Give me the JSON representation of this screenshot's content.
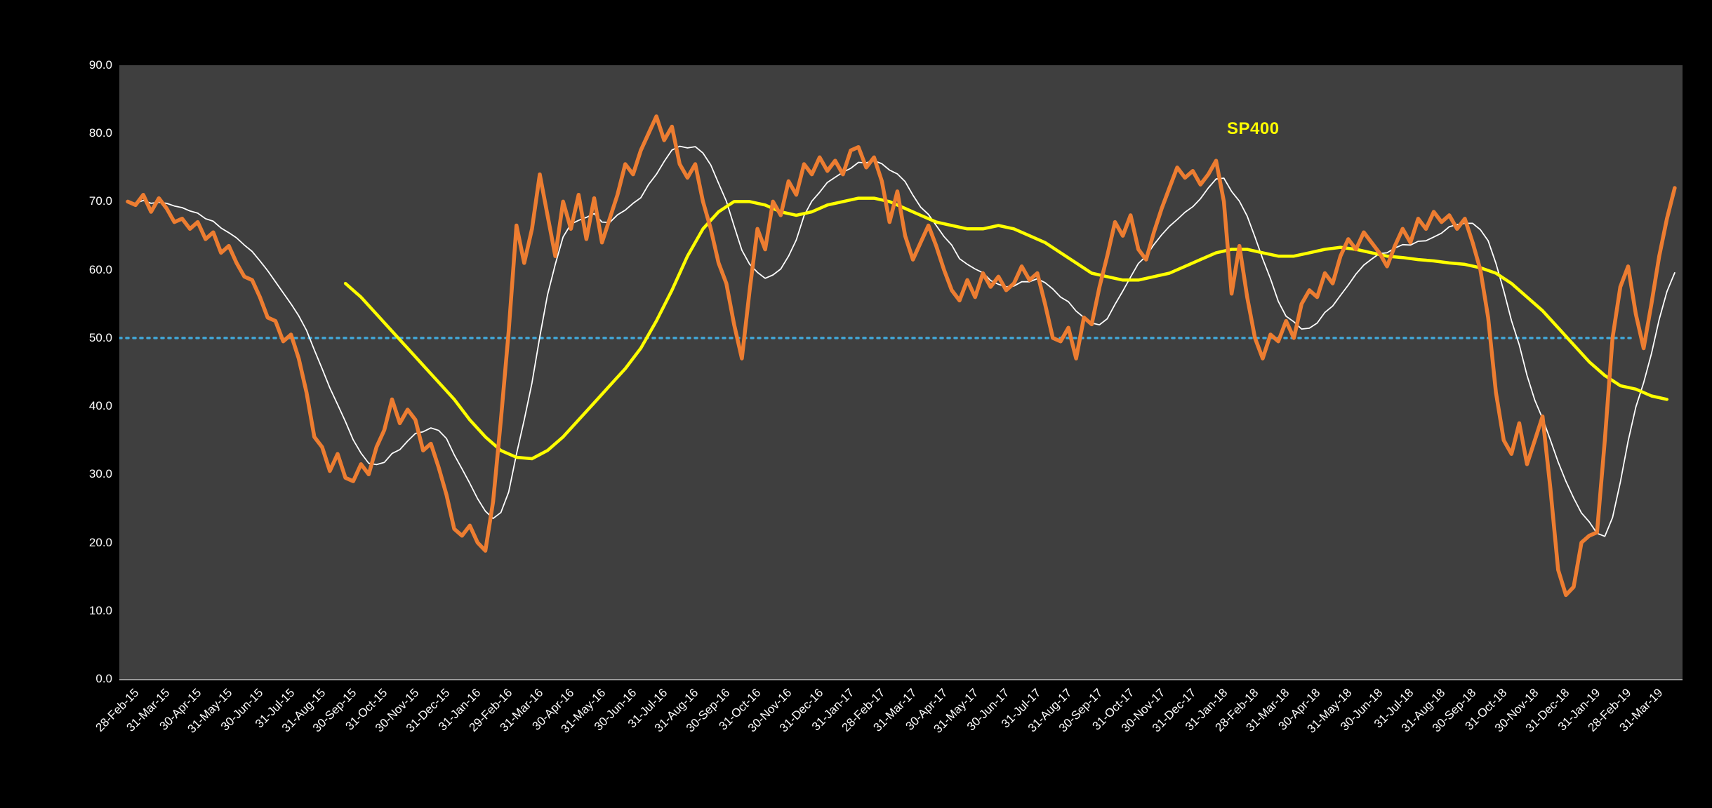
{
  "page": {
    "background": "#000000"
  },
  "chart_data": {
    "type": "line",
    "title": "",
    "legend": {
      "text": "SP400",
      "color": "#FFFF00"
    },
    "plot_bg": "#3F3F3F",
    "grid": "off",
    "legend_position": "inside-top-right",
    "ylim": [
      0,
      90
    ],
    "y_tick_labels": [
      "90.0",
      "80.0",
      "70.0",
      "60.0",
      "50.0",
      "40.0",
      "30.0",
      "20.0",
      "10.0",
      "0.0"
    ],
    "x_labels": [
      "28-Feb-15",
      "31-Mar-15",
      "30-Apr-15",
      "31-May-15",
      "30-Jun-15",
      "31-Jul-15",
      "31-Aug-15",
      "30-Sep-15",
      "31-Oct-15",
      "30-Nov-15",
      "31-Dec-15",
      "31-Jan-16",
      "29-Feb-16",
      "31-Mar-16",
      "30-Apr-16",
      "31-May-16",
      "30-Jun-16",
      "31-Jul-16",
      "31-Aug-16",
      "30-Sep-16",
      "31-Oct-16",
      "30-Nov-16",
      "31-Dec-16",
      "31-Jan-17",
      "28-Feb-17",
      "31-Mar-17",
      "30-Apr-17",
      "31-May-17",
      "30-Jun-17",
      "31-Jul-17",
      "31-Aug-17",
      "30-Sep-17",
      "31-Oct-17",
      "30-Nov-17",
      "31-Dec-17",
      "31-Jan-18",
      "28-Feb-18",
      "31-Mar-18",
      "30-Apr-18",
      "31-May-18",
      "30-Jun-18",
      "31-Jul-18",
      "31-Aug-18",
      "30-Sep-18",
      "31-Oct-18",
      "30-Nov-18",
      "31-Dec-18",
      "31-Jan-19",
      "28-Feb-19",
      "31-Mar-19"
    ],
    "threshold": {
      "value": 50,
      "color": "#41A8D9",
      "style": "dotted"
    },
    "series": [
      {
        "id": "weekly-indicator",
        "color": "#ED7D31",
        "width": 5.5,
        "x_start": 0,
        "x_step": 0.25,
        "values": [
          70,
          69.5,
          71,
          68.5,
          70.5,
          69,
          67,
          67.5,
          66,
          67,
          64.5,
          65.5,
          62.5,
          63.5,
          61,
          59,
          58.5,
          56,
          53,
          52.5,
          49.5,
          50.5,
          47,
          42,
          35.5,
          34,
          30.5,
          33,
          29.5,
          29,
          31.5,
          30,
          34,
          36.5,
          41,
          37.5,
          39.5,
          38,
          33.5,
          34.5,
          31,
          27,
          22,
          21,
          22.5,
          20,
          18.8,
          26,
          38,
          51,
          66.5,
          61,
          66,
          74,
          68,
          62,
          70,
          66,
          71,
          64.5,
          70.5,
          64,
          67.5,
          71,
          75.5,
          74,
          77.5,
          80,
          82.5,
          79,
          81,
          75.5,
          73.5,
          75.5,
          70,
          66,
          61,
          58,
          52,
          47,
          57,
          66,
          63,
          70,
          68,
          73,
          71,
          75.5,
          74,
          76.5,
          74.5,
          76,
          74,
          77.5,
          78,
          75,
          76.5,
          73,
          67,
          71.5,
          65,
          61.5,
          64,
          66.5,
          63.5,
          60,
          57,
          55.5,
          58.5,
          56,
          59.5,
          57.5,
          59,
          57,
          58,
          60.5,
          58.5,
          59.5,
          55,
          50,
          49.5,
          51.5,
          47,
          53,
          52,
          57.5,
          62,
          67,
          65,
          68,
          63,
          61.5,
          65.5,
          69,
          72,
          75,
          73.5,
          74.5,
          72.5,
          74,
          76,
          70,
          56.5,
          63.5,
          56,
          50,
          47,
          50.5,
          49.5,
          52.5,
          50,
          55,
          57,
          56,
          59.5,
          58,
          62,
          64.5,
          63,
          65.5,
          64,
          62.5,
          60.5,
          63.5,
          66,
          64,
          67.5,
          66,
          68.5,
          67,
          68,
          66,
          67.5,
          64,
          60,
          53,
          42,
          35,
          33,
          37.5,
          31.5,
          35,
          38.5,
          28,
          16,
          12.3,
          13.5,
          20,
          21,
          21.5,
          35,
          50,
          57.5,
          60.5,
          53.5,
          48.5,
          55,
          62,
          67.5,
          72
        ]
      },
      {
        "id": "smoothed-average",
        "color": "#FFFFFF",
        "width": 1.8,
        "derived_moving_average_of": 0,
        "window": 8
      },
      {
        "id": "sp400-long-average",
        "color": "#FFFF00",
        "width": 4.5,
        "x_start": 7.0,
        "x_step": 0.5,
        "values": [
          58,
          56,
          53.5,
          51,
          48.5,
          46,
          43.5,
          41,
          38,
          35.5,
          33.5,
          32.5,
          32.3,
          33.5,
          35.5,
          38,
          40.5,
          43,
          45.5,
          48.5,
          52.5,
          57,
          62,
          66,
          68.5,
          70,
          70,
          69.5,
          68.5,
          68,
          68.5,
          69.5,
          70,
          70.5,
          70.5,
          70,
          69,
          68,
          67,
          66.5,
          66,
          66,
          66.5,
          66,
          65,
          64,
          62.5,
          61,
          59.5,
          59,
          58.5,
          58.5,
          59,
          59.5,
          60.5,
          61.5,
          62.5,
          63,
          63,
          62.5,
          62,
          62,
          62.5,
          63,
          63.3,
          63,
          62.5,
          62,
          61.8,
          61.5,
          61.3,
          61,
          60.8,
          60.3,
          59.5,
          58,
          56,
          54,
          51.5,
          49,
          46.5,
          44.5,
          43,
          42.5,
          41.5,
          41
        ]
      }
    ]
  }
}
